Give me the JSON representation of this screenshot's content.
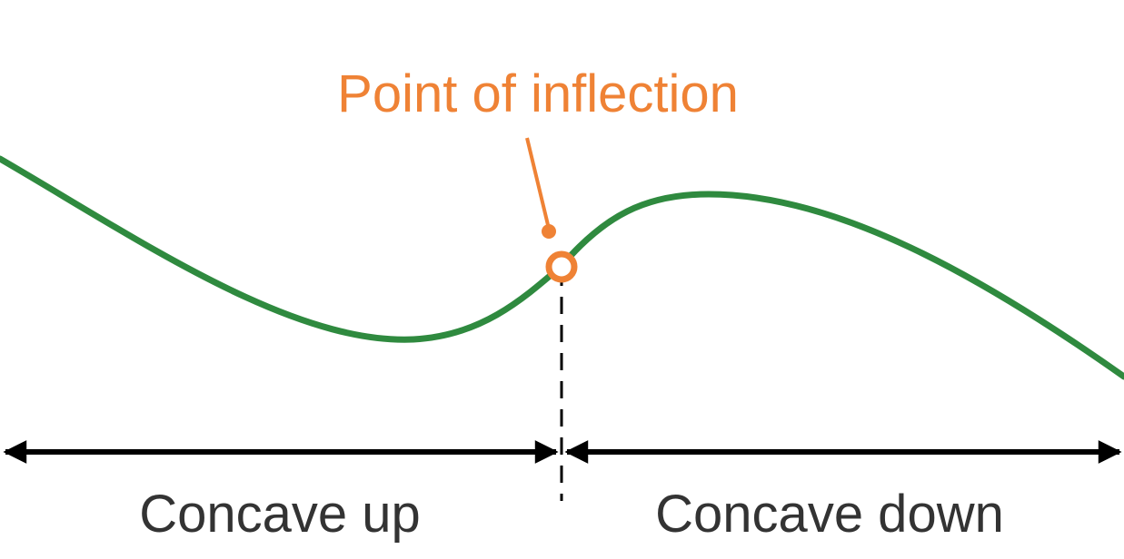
{
  "colors": {
    "curve": "#2f8a3f",
    "accent": "#ef8235",
    "axis": "#000000",
    "text": "#333333",
    "background": "#ffffff"
  },
  "annotation": {
    "label": "Point of inflection"
  },
  "regions": {
    "left": "Concave up",
    "right": "Concave down"
  }
}
